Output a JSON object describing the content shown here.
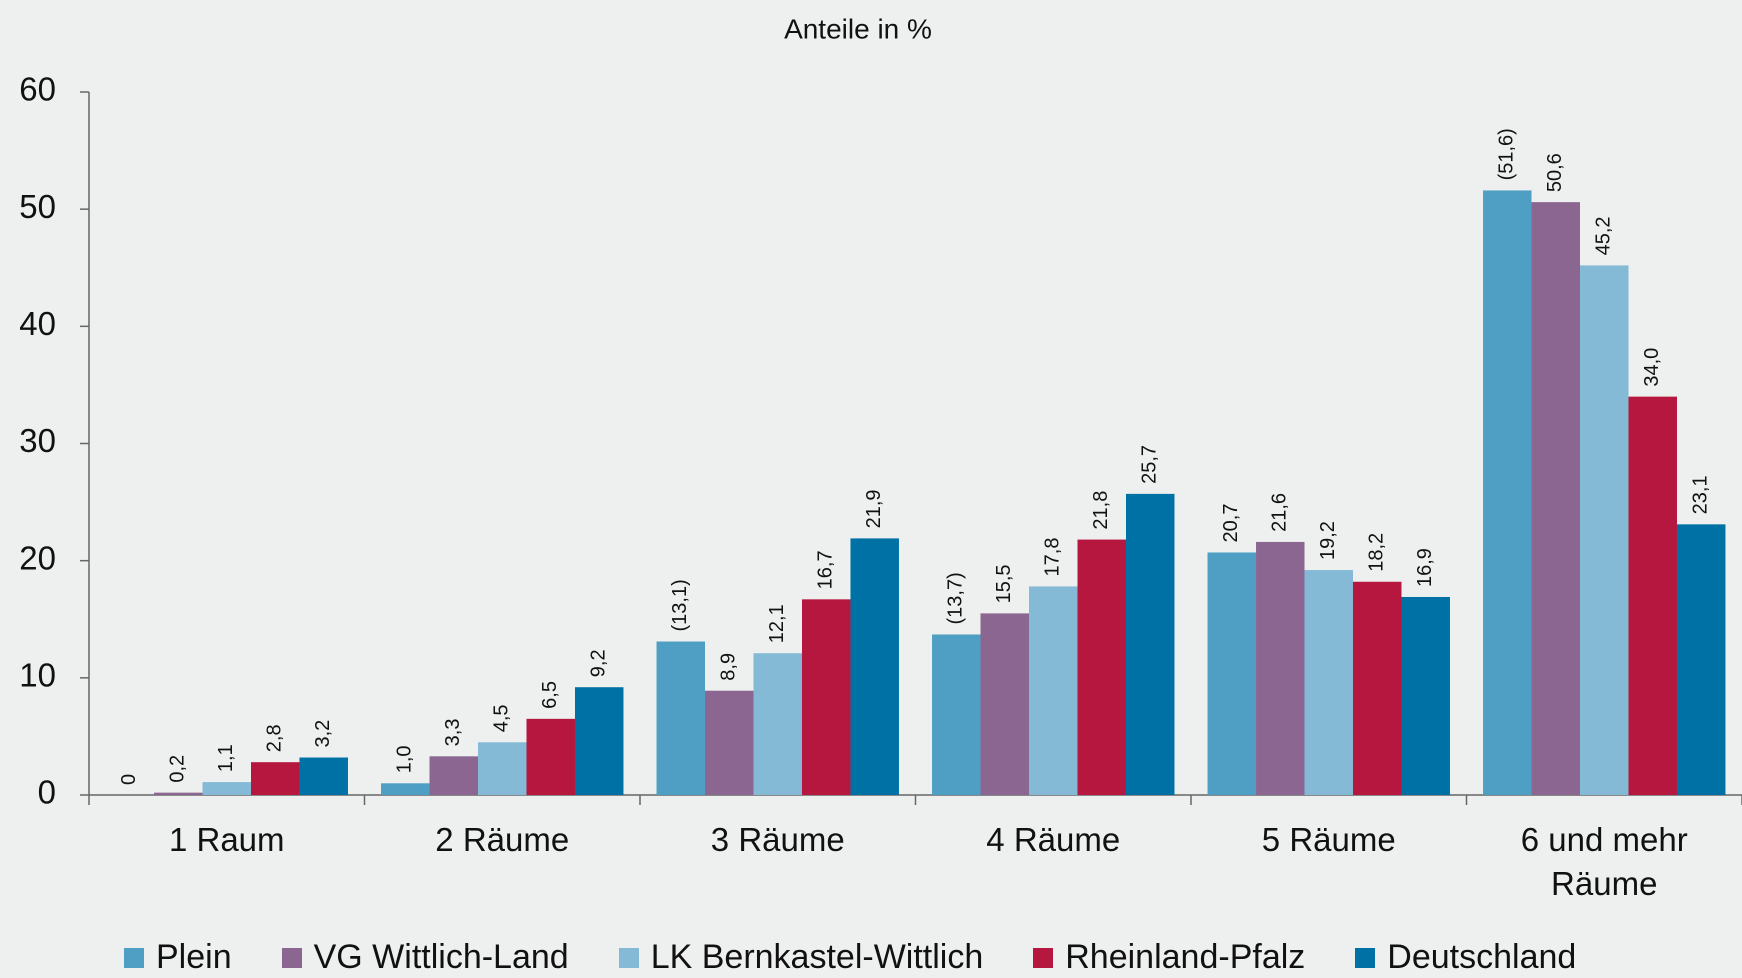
{
  "chart_data": {
    "type": "bar",
    "title": "Anteile in %",
    "categories": [
      "1 Raum",
      "2 Räume",
      "3 Räume",
      "4 Räume",
      "5 Räume",
      "6 und mehr Räume"
    ],
    "series": [
      {
        "name": "Plein",
        "color": "#4f9fc4",
        "values": [
          0,
          1.0,
          13.1,
          13.7,
          20.7,
          51.6
        ],
        "value_labels": [
          "0",
          "1,0",
          "(13,1)",
          "(13,7)",
          "20,7",
          "(51,6)"
        ]
      },
      {
        "name": "VG Wittlich-Land",
        "color": "#8a6690",
        "values": [
          0.2,
          3.3,
          8.9,
          15.5,
          21.6,
          50.6
        ],
        "value_labels": [
          "0,2",
          "3,3",
          "8,9",
          "15,5",
          "21,6",
          "50,6"
        ]
      },
      {
        "name": "LK Bernkastel-Wittlich",
        "color": "#85bad6",
        "values": [
          1.1,
          4.5,
          12.1,
          17.8,
          19.2,
          45.2
        ],
        "value_labels": [
          "1,1",
          "4,5",
          "12,1",
          "17,8",
          "19,2",
          "45,2"
        ]
      },
      {
        "name": "Rheinland-Pfalz",
        "color": "#b5173f",
        "values": [
          2.8,
          6.5,
          16.7,
          21.8,
          18.2,
          34.0
        ],
        "value_labels": [
          "2,8",
          "6,5",
          "16,7",
          "21,8",
          "18,2",
          "34,0"
        ]
      },
      {
        "name": "Deutschland",
        "color": "#0071a4",
        "values": [
          3.2,
          9.2,
          21.9,
          25.7,
          16.9,
          23.1
        ],
        "value_labels": [
          "3,2",
          "9,2",
          "21,9",
          "25,7",
          "16,9",
          "23,1"
        ]
      }
    ],
    "ylim": [
      0,
      60
    ],
    "yticks": [
      0,
      10,
      20,
      30,
      40,
      50,
      60
    ],
    "legend": "bottom"
  }
}
